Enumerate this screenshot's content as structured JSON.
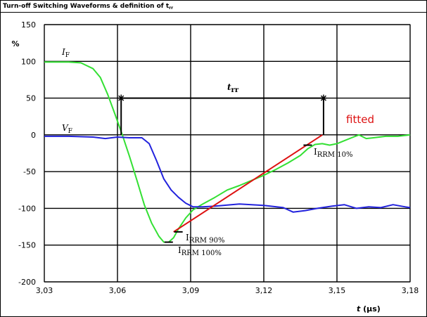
{
  "chart_data": {
    "type": "line",
    "title_main": "Turn-off  Switching Waveforms & definition of t",
    "title_sub": "rr",
    "ylabel": "%",
    "xlabel_italic": "t",
    "xlabel_unit": " (µs)",
    "xlim": [
      3.03,
      3.18
    ],
    "ylim": [
      -200,
      150
    ],
    "x_ticks": [
      3.03,
      3.06,
      3.09,
      3.12,
      3.15,
      3.18
    ],
    "x_tick_labels": [
      "3,03",
      "3,06",
      "3,09",
      "3,12",
      "3,15",
      "3,18"
    ],
    "y_ticks": [
      150,
      100,
      50,
      0,
      -50,
      -100,
      -150,
      -200
    ],
    "y_tick_labels": [
      "150",
      "100",
      "50",
      "0",
      "-50",
      "-100",
      "-150",
      "-200"
    ],
    "grid": true,
    "series": [
      {
        "name": "IF",
        "color": "#33e033",
        "x": [
          3.03,
          3.04,
          3.045,
          3.05,
          3.053,
          3.056,
          3.059,
          3.062,
          3.065,
          3.068,
          3.071,
          3.074,
          3.077,
          3.079,
          3.081,
          3.083,
          3.085,
          3.088,
          3.091,
          3.095,
          3.1,
          3.105,
          3.11,
          3.115,
          3.12,
          3.125,
          3.13,
          3.135,
          3.138,
          3.141,
          3.144,
          3.147,
          3.15,
          3.153,
          3.156,
          3.159,
          3.162,
          3.165,
          3.17,
          3.175,
          3.18
        ],
        "values": [
          99,
          99,
          98,
          90,
          78,
          55,
          28,
          0,
          -30,
          -62,
          -95,
          -120,
          -138,
          -146,
          -146,
          -140,
          -128,
          -113,
          -102,
          -94,
          -85,
          -75,
          -69,
          -62,
          -55,
          -47,
          -38,
          -28,
          -19,
          -13,
          -12,
          -14,
          -12,
          -8,
          -4,
          0,
          -5,
          -4,
          -2,
          -2,
          0
        ]
      },
      {
        "name": "VF",
        "color": "#2222dd",
        "x": [
          3.03,
          3.04,
          3.05,
          3.055,
          3.06,
          3.065,
          3.07,
          3.073,
          3.076,
          3.079,
          3.082,
          3.085,
          3.088,
          3.091,
          3.095,
          3.1,
          3.11,
          3.12,
          3.128,
          3.132,
          3.137,
          3.142,
          3.148,
          3.153,
          3.158,
          3.163,
          3.168,
          3.173,
          3.178,
          3.18
        ],
        "values": [
          -2,
          -2,
          -3,
          -5,
          -3,
          -4,
          -4,
          -12,
          -35,
          -60,
          -75,
          -85,
          -93,
          -98,
          -98,
          -97,
          -94,
          -96,
          -99,
          -105,
          -103,
          -100,
          -97,
          -95,
          -100,
          -98,
          -99,
          -95,
          -98,
          -99
        ]
      },
      {
        "name": "fitted",
        "color": "#dd1111",
        "x": [
          3.083,
          3.144
        ],
        "values": [
          -132,
          0
        ]
      }
    ],
    "trr_markers": {
      "x_start": 3.0615,
      "x_end": 3.1445,
      "y_level": 50,
      "y_drop": 0
    },
    "ticks_marks": [
      {
        "x": 3.081,
        "y": -146
      },
      {
        "x": 3.085,
        "y": -132
      },
      {
        "x": 3.138,
        "y": -14
      }
    ],
    "annotations": {
      "if_label": "I",
      "if_sub": "F",
      "vf_label": "V",
      "vf_sub": "F",
      "trr_label": "t",
      "trr_sub": "rr",
      "fitted_label": "fitted",
      "irrm10_main": "I",
      "irrm10_sub": "RRM 10%",
      "irrm90_main": "I",
      "irrm90_sub": "RRM 90%",
      "irrm100_main": "I",
      "irrm100_sub": "RRM 100%"
    },
    "colors": {
      "grid": "#000000",
      "fitted_text": "#dd1111"
    }
  }
}
